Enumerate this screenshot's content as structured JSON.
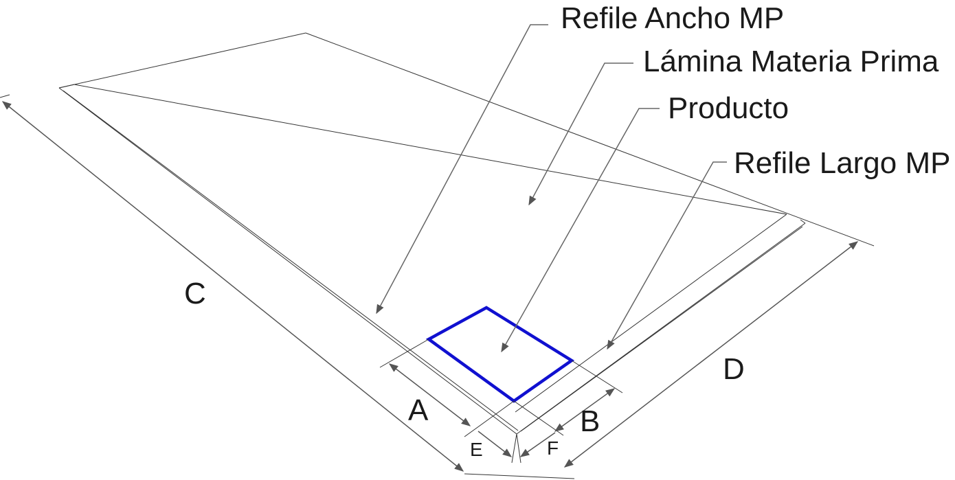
{
  "callouts": {
    "refile_ancho": "Refile Ancho MP",
    "lamina": "Lámina Materia Prima",
    "producto": "Producto",
    "refile_largo": "Refile Largo MP"
  },
  "dimensions": {
    "a": "A",
    "b": "B",
    "c": "C",
    "d": "D",
    "e": "E",
    "f": "F"
  },
  "colors": {
    "product_outline": "#1010d0",
    "lines": "#333333",
    "dimension_lines": "#555555"
  }
}
